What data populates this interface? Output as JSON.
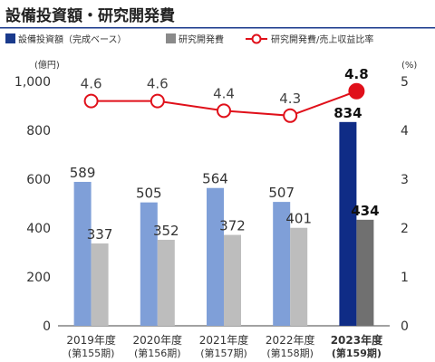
{
  "title": "設備投資額・研究開発費",
  "legend": {
    "capex": "設備投資額（完成ベース）",
    "rnd": "研究開発費",
    "ratio": "研究開発費/売上収益比率"
  },
  "colors": {
    "title_bar": "#1a3a8c",
    "capex": "#7f9fd8",
    "capex_highlight": "#0f2c86",
    "rnd": "#bdbdbd",
    "rnd_highlight": "#707070",
    "ratio_line": "#e0101a",
    "axis": "#444444"
  },
  "chart_data": {
    "type": "bar",
    "title": "設備投資額・研究開発費",
    "categories": [
      [
        "2019年度",
        "(第155期)"
      ],
      [
        "2020年度",
        "(第156期)"
      ],
      [
        "2021年度",
        "(第157期)"
      ],
      [
        "2022年度",
        "(第158期)"
      ],
      [
        "2023年度",
        "(第159期)"
      ]
    ],
    "series": [
      {
        "name": "設備投資額（完成ベース）",
        "type": "bar",
        "axis": "left",
        "values": [
          589,
          505,
          564,
          507,
          834
        ]
      },
      {
        "name": "研究開発費",
        "type": "bar",
        "axis": "left",
        "values": [
          337,
          352,
          372,
          401,
          434
        ]
      },
      {
        "name": "研究開発費/売上収益比率",
        "type": "line",
        "axis": "right",
        "values": [
          4.6,
          4.6,
          4.4,
          4.3,
          4.8
        ]
      }
    ],
    "highlight_index": 4,
    "y_left": {
      "unit": "(億円)",
      "ticks": [
        "0",
        "200",
        "400",
        "600",
        "800",
        "1,000"
      ],
      "lim": [
        0,
        1000
      ]
    },
    "y_right": {
      "unit": "(%)",
      "ticks": [
        "0",
        "1",
        "2",
        "3",
        "4",
        "5"
      ],
      "lim": [
        0,
        5
      ]
    },
    "grid": false,
    "legend_position": "top"
  }
}
